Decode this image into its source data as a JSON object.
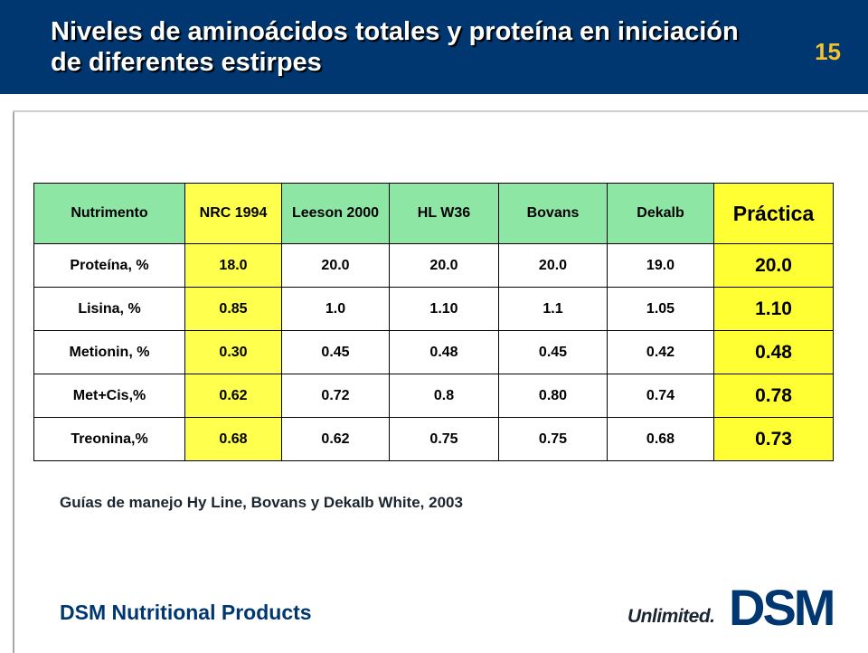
{
  "slide": {
    "title": "Niveles de aminoácidos totales y proteína en iniciación de diferentes estirpes",
    "number": "15"
  },
  "table": {
    "headers": [
      "Nutrimento",
      "NRC 1994",
      "Leeson 2000",
      "HL W36",
      "Bovans",
      "Dekalb",
      "Práctica"
    ],
    "rows": [
      [
        "Proteína, %",
        "18.0",
        "20.0",
        "20.0",
        "20.0",
        "19.0",
        "20.0"
      ],
      [
        "Lisina, %",
        "0.85",
        "1.0",
        "1.10",
        "1.1",
        "1.05",
        "1.10"
      ],
      [
        "Metionin, %",
        "0.30",
        "0.45",
        "0.48",
        "0.45",
        "0.42",
        "0.48"
      ],
      [
        "Met+Cis,%",
        "0.62",
        "0.72",
        "0.8",
        "0.80",
        "0.74",
        "0.78"
      ],
      [
        "Treonina,%",
        "0.68",
        "0.62",
        "0.75",
        "0.75",
        "0.68",
        "0.73"
      ]
    ]
  },
  "source_note": "Guías de manejo Hy Line, Bovans y Dekalb White, 2003",
  "footer": {
    "company": "DSM Nutritional Products",
    "tagline": "Unlimited.",
    "logo_text": "DSM"
  },
  "colors": {
    "header_bg": "#003770",
    "table_header": "#8ee6a4",
    "highlight_yellow": "#ffff33",
    "slide_number": "#f2c230"
  }
}
